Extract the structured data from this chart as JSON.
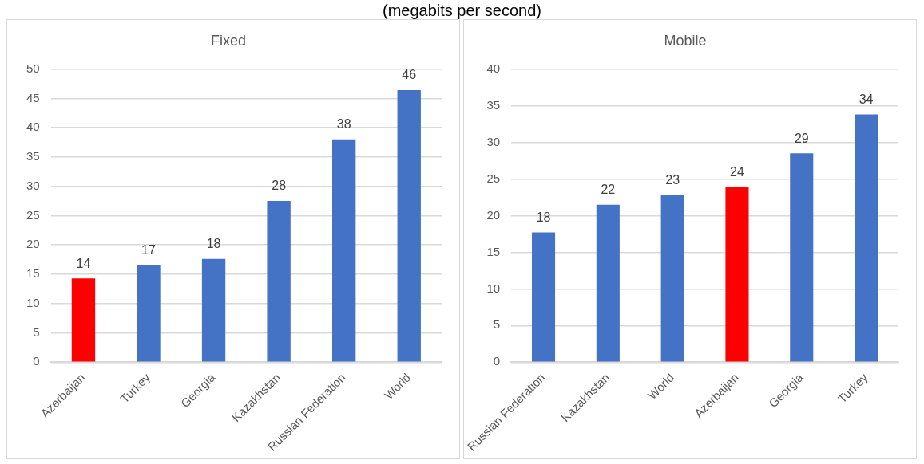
{
  "chart_data": [
    {
      "type": "bar",
      "title": "Fixed",
      "subtitle": "(megabits per second)",
      "categories": [
        "Azerbaijan",
        "Turkey",
        "Georgia",
        "Kazakhstan",
        "Russian Federation",
        "World"
      ],
      "values": [
        14.3,
        16.5,
        17.6,
        27.5,
        38.0,
        46.4
      ],
      "colors": [
        "#ff0000",
        "#4472c4",
        "#4472c4",
        "#4472c4",
        "#4472c4",
        "#4472c4"
      ],
      "value_labels": [
        "14",
        "17",
        "18",
        "28",
        "38",
        "46"
      ],
      "ylim": [
        0,
        50
      ],
      "yticks": [
        0,
        5,
        10,
        15,
        20,
        25,
        30,
        35,
        40,
        45,
        50
      ],
      "grid": "y",
      "legend": false
    },
    {
      "type": "bar",
      "title": "Mobile",
      "categories": [
        "Russian Federation",
        "Kazakhstan",
        "World",
        "Azerbaijan",
        "Georgia",
        "Turkey"
      ],
      "values": [
        17.7,
        21.5,
        22.8,
        23.9,
        28.5,
        33.8
      ],
      "colors": [
        "#4472c4",
        "#4472c4",
        "#4472c4",
        "#ff0000",
        "#4472c4",
        "#4472c4"
      ],
      "value_labels": [
        "18",
        "22",
        "23",
        "24",
        "29",
        "34"
      ],
      "ylim": [
        0,
        40
      ],
      "yticks": [
        0,
        5,
        10,
        15,
        20,
        25,
        30,
        35,
        40
      ],
      "grid": "y",
      "legend": false
    }
  ]
}
